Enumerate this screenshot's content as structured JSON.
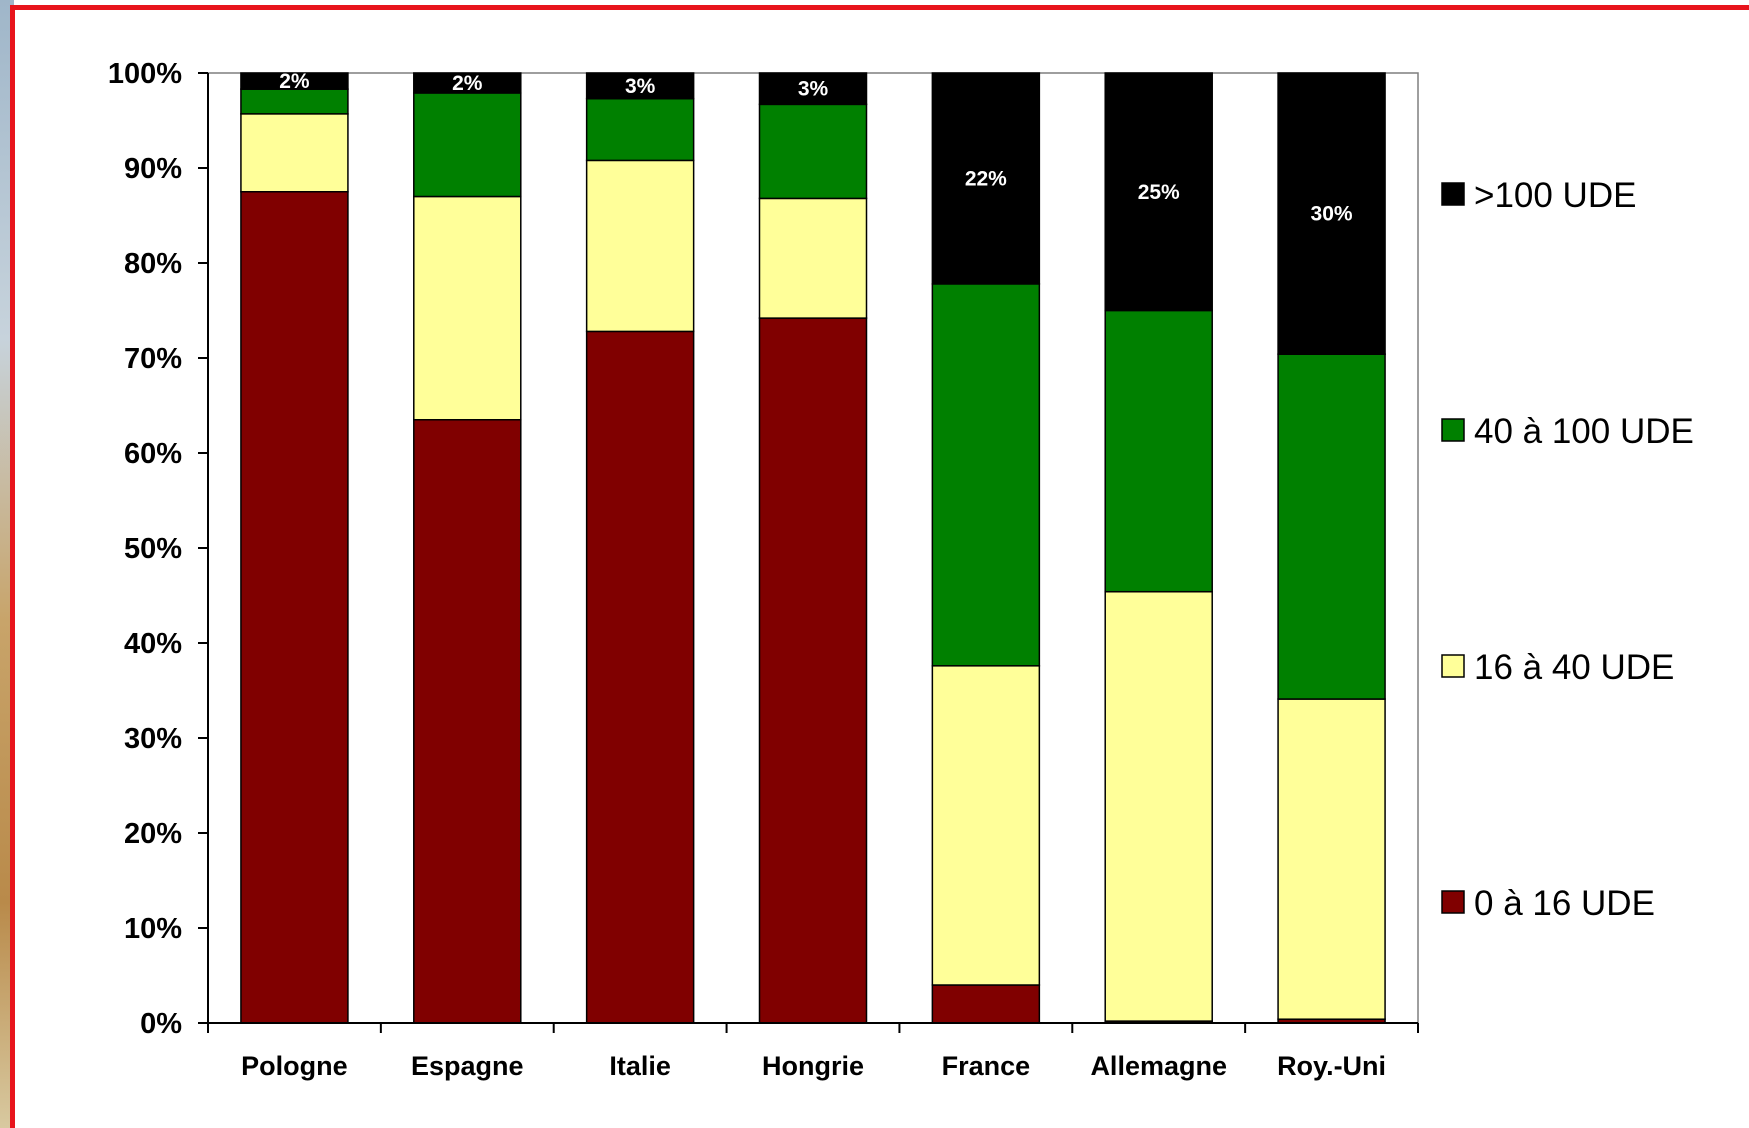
{
  "chart_data": {
    "type": "bar",
    "stacked": true,
    "percent": true,
    "categories": [
      "Pologne",
      "Espagne",
      "Italie",
      "Hongrie",
      "France",
      "Allemagne",
      "Roy.-Uni"
    ],
    "series": [
      {
        "name": "0 à 16 UDE",
        "color": "#800000",
        "values": [
          87.5,
          63.5,
          72.8,
          74.2,
          4.0,
          0.2,
          0.4
        ]
      },
      {
        "name": "16 à 40 UDE",
        "color": "#ffff99",
        "values": [
          8.2,
          23.5,
          18.0,
          12.6,
          33.6,
          45.2,
          33.7
        ]
      },
      {
        "name": "40 à 100 UDE",
        "color": "#008000",
        "values": [
          2.6,
          10.9,
          6.5,
          9.9,
          40.2,
          29.6,
          36.3
        ]
      },
      {
        "name": ">100 UDE",
        "color": "#000000",
        "values": [
          1.7,
          2.1,
          2.7,
          3.3,
          22.2,
          25.0,
          29.6
        ]
      }
    ],
    "data_labels": {
      ">100 UDE": [
        "2%",
        "2%",
        "3%",
        "3%",
        "22%",
        "25%",
        "30%"
      ]
    },
    "yticks": [
      "0%",
      "10%",
      "20%",
      "30%",
      "40%",
      "50%",
      "60%",
      "70%",
      "80%",
      "90%",
      "100%"
    ],
    "ylim": [
      0,
      100
    ],
    "legend_order": [
      ">100 UDE",
      "40 à 100 UDE",
      "16 à 40 UDE",
      "0 à 16 UDE"
    ],
    "legend_position": "right",
    "grid": false,
    "title": "",
    "xlabel": "",
    "ylabel": ""
  }
}
